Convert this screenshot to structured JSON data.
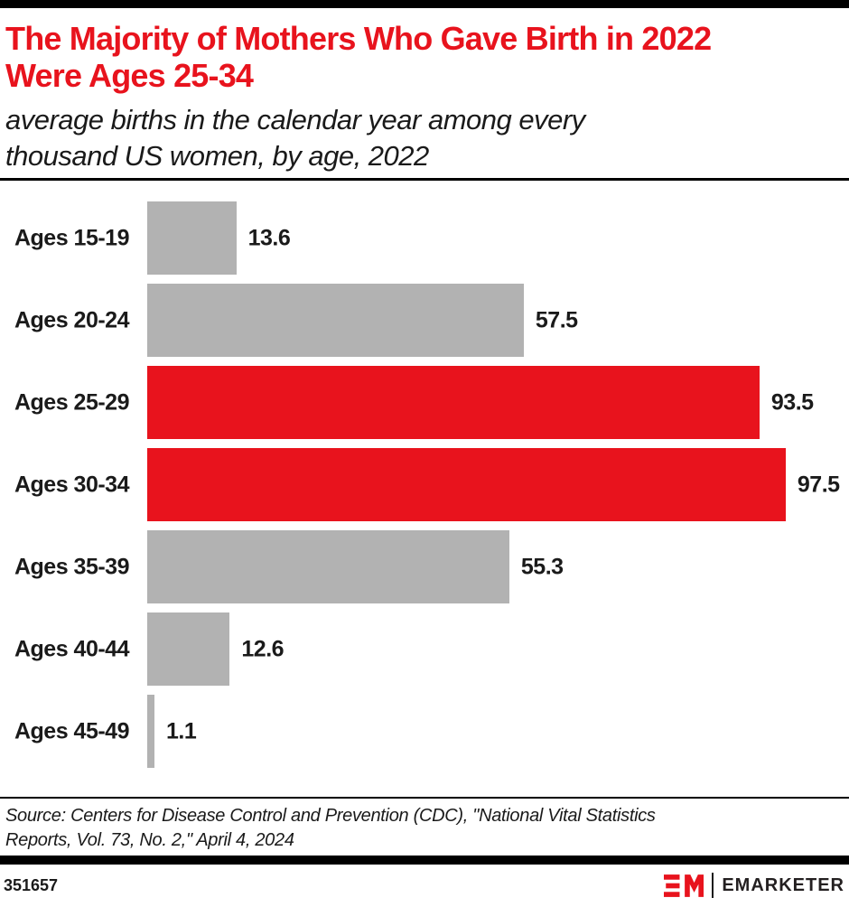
{
  "header": {
    "title_lines": [
      "The Majority of Mothers Who Gave Birth in 2022",
      "Were Ages 25-34"
    ],
    "subtitle_lines": [
      "average births in the calendar year among every",
      "thousand US women, by age, 2022"
    ]
  },
  "chart_data": {
    "type": "bar",
    "orientation": "horizontal",
    "title": "The Majority of Mothers Who Gave Birth in 2022 Were Ages 25-34",
    "subtitle": "average births in the calendar year among every thousand US women, by age, 2022",
    "categories": [
      "Ages 15-19",
      "Ages 20-24",
      "Ages 25-29",
      "Ages 30-34",
      "Ages 35-39",
      "Ages 40-44",
      "Ages 45-49"
    ],
    "values": [
      13.6,
      57.5,
      93.5,
      97.5,
      55.3,
      12.6,
      1.1
    ],
    "highlighted": [
      false,
      false,
      true,
      true,
      false,
      false,
      false
    ],
    "xlabel": "",
    "ylabel": "",
    "xlim": [
      0,
      100
    ],
    "grid": false,
    "value_labels_shown": true,
    "legend": null
  },
  "colors": {
    "accent_red": "#e8131d",
    "bar_gray": "#b2b2b2",
    "text_black": "#1a1a1a",
    "logo_text_black": "#231f20"
  },
  "source": {
    "lines": [
      "Source: Centers for Disease Control and Prevention (CDC), \"National Vital Statistics",
      "Reports, Vol. 73, No. 2,\" April 4, 2024"
    ]
  },
  "footer": {
    "chart_id": "351657",
    "brand_name": "EMARKETER"
  }
}
